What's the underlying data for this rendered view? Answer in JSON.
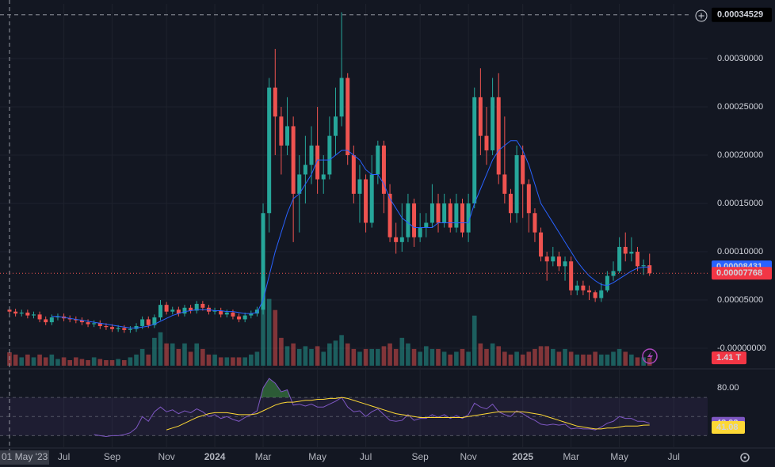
{
  "chart_data": {
    "type": "candlestick",
    "grid": true,
    "colors": {
      "up": "#26a69a",
      "down": "#ef5350"
    },
    "categories": [
      "01 May '23",
      null,
      null,
      null,
      null,
      null,
      null,
      null,
      null,
      "Jul",
      null,
      null,
      null,
      null,
      null,
      null,
      null,
      "Sep",
      null,
      null,
      null,
      null,
      null,
      null,
      null,
      null,
      "Nov",
      null,
      null,
      null,
      null,
      null,
      null,
      null,
      "2024",
      null,
      null,
      null,
      null,
      null,
      null,
      null,
      "Mar",
      null,
      null,
      null,
      null,
      null,
      null,
      null,
      null,
      "May",
      null,
      null,
      null,
      null,
      null,
      null,
      null,
      "Jul",
      null,
      null,
      null,
      null,
      null,
      null,
      null,
      null,
      "Sep",
      null,
      null,
      null,
      null,
      null,
      null,
      null,
      "Nov",
      null,
      null,
      null,
      null,
      null,
      null,
      null,
      null,
      "2025",
      null,
      null,
      null,
      null,
      null,
      null,
      null,
      "Mar",
      null,
      null,
      null,
      null,
      null,
      null,
      null,
      "May",
      null,
      null,
      null,
      null,
      null,
      null,
      null,
      null,
      "Jul"
    ],
    "ohlc": [
      [
        4e-05,
        4.3e-05,
        3.5e-05,
        3.8e-05
      ],
      [
        3.8e-05,
        4.1e-05,
        3.3e-05,
        3.6e-05
      ],
      [
        3.6e-05,
        4e-05,
        3.3e-05,
        3.7e-05
      ],
      [
        3.7e-05,
        4e-05,
        3.1e-05,
        3.4e-05
      ],
      [
        3.4e-05,
        3.8e-05,
        3.1e-05,
        3.5e-05
      ],
      [
        3.5e-05,
        3.8e-05,
        2.7e-05,
        3e-05
      ],
      [
        3e-05,
        3.3e-05,
        2.4e-05,
        2.7e-05
      ],
      [
        2.7e-05,
        3.5e-05,
        2.4e-05,
        3.2e-05
      ],
      [
        3.2e-05,
        3.6e-05,
        2.9e-05,
        3.3e-05
      ],
      [
        3.3e-05,
        3.6e-05,
        2.8e-05,
        3.1e-05
      ],
      [
        3.1e-05,
        3.4e-05,
        2.7e-05,
        3e-05
      ],
      [
        3e-05,
        3.3e-05,
        2.6e-05,
        2.9e-05
      ],
      [
        2.9e-05,
        3.2e-05,
        2.4e-05,
        2.7e-05
      ],
      [
        2.7e-05,
        3e-05,
        2.2e-05,
        2.5e-05
      ],
      [
        2.5e-05,
        2.9e-05,
        2.2e-05,
        2.6e-05
      ],
      [
        2.6e-05,
        2.9e-05,
        2e-05,
        2.3e-05
      ],
      [
        2.3e-05,
        2.6e-05,
        1.9e-05,
        2.2e-05
      ],
      [
        2.2e-05,
        2.5e-05,
        1.7e-05,
        2e-05
      ],
      [
        2e-05,
        2.4e-05,
        1.7e-05,
        2.1e-05
      ],
      [
        2.1e-05,
        2.4e-05,
        1.6e-05,
        1.9e-05
      ],
      [
        1.9e-05,
        2.3e-05,
        1.6e-05,
        2e-05
      ],
      [
        2e-05,
        2.6e-05,
        1.7e-05,
        2.3e-05
      ],
      [
        2.3e-05,
        3.3e-05,
        2e-05,
        3e-05
      ],
      [
        3e-05,
        3.3e-05,
        2.1e-05,
        2.4e-05
      ],
      [
        2.4e-05,
        3.5e-05,
        2.1e-05,
        3.2e-05
      ],
      [
        3.2e-05,
        5e-05,
        2.9e-05,
        4.5e-05
      ],
      [
        4.5e-05,
        4.8e-05,
        3.5e-05,
        3.8e-05
      ],
      [
        3.8e-05,
        4.3e-05,
        3.5e-05,
        4e-05
      ],
      [
        4e-05,
        4.3e-05,
        3.3e-05,
        3.6e-05
      ],
      [
        3.6e-05,
        4.5e-05,
        3.3e-05,
        4.2e-05
      ],
      [
        4.2e-05,
        4.5e-05,
        3.6e-05,
        3.9e-05
      ],
      [
        3.9e-05,
        4.9e-05,
        3.6e-05,
        4.6e-05
      ],
      [
        4.6e-05,
        4.9e-05,
        3.9e-05,
        4.2e-05
      ],
      [
        4.2e-05,
        4.5e-05,
        3.5e-05,
        3.8e-05
      ],
      [
        3.8e-05,
        4.2e-05,
        3.5e-05,
        3.9e-05
      ],
      [
        3.9e-05,
        4.2e-05,
        3.2e-05,
        3.5e-05
      ],
      [
        3.5e-05,
        4e-05,
        3.2e-05,
        3.7e-05
      ],
      [
        3.7e-05,
        4e-05,
        3e-05,
        3.3e-05
      ],
      [
        3.3e-05,
        3.6e-05,
        2.7e-05,
        3e-05
      ],
      [
        3e-05,
        3.7e-05,
        2.7e-05,
        3.4e-05
      ],
      [
        3.4e-05,
        3.9e-05,
        3.1e-05,
        3.6e-05
      ],
      [
        3.6e-05,
        4.3e-05,
        3.3e-05,
        4e-05
      ],
      [
        4e-05,
        0.00015,
        3.5e-05,
        0.00014
      ],
      [
        0.00014,
        0.00028,
        0.00012,
        0.00027
      ],
      [
        0.00027,
        0.00031,
        0.0002,
        0.00024
      ],
      [
        0.00024,
        0.00025,
        0.00018,
        0.00021
      ],
      [
        0.00021,
        0.00026,
        0.0002,
        0.00023
      ],
      [
        0.00023,
        0.00024,
        0.00011,
        0.00016
      ],
      [
        0.00016,
        0.0002,
        0.00012,
        0.00018
      ],
      [
        0.00018,
        0.00022,
        0.00015,
        0.00019
      ],
      [
        0.00019,
        0.00023,
        0.00017,
        0.00021
      ],
      [
        0.00021,
        0.00025,
        0.00016,
        0.000175
      ],
      [
        0.000175,
        0.0002,
        0.00016,
        0.00018
      ],
      [
        0.00018,
        0.00024,
        0.000175,
        0.00022
      ],
      [
        0.00022,
        0.00027,
        0.0002,
        0.00024
      ],
      [
        0.00024,
        0.000348,
        0.00023,
        0.00028
      ],
      [
        0.00028,
        0.000285,
        0.00019,
        0.0002
      ],
      [
        0.0002,
        0.00021,
        0.00015,
        0.00016
      ],
      [
        0.00016,
        0.00019,
        0.00013,
        0.000175
      ],
      [
        0.000175,
        0.00018,
        0.00012,
        0.00013
      ],
      [
        0.00013,
        0.0002,
        0.000125,
        0.00018
      ],
      [
        0.00018,
        0.000215,
        0.00017,
        0.00021
      ],
      [
        0.00021,
        0.000215,
        0.00014,
        0.00016
      ],
      [
        0.00016,
        0.00017,
        0.00011,
        0.000115
      ],
      [
        0.000115,
        0.00013,
        9.8e-05,
        0.00011
      ],
      [
        0.00011,
        0.00015,
        0.0001,
        0.000115
      ],
      [
        0.000115,
        0.00016,
        0.00011,
        0.00015
      ],
      [
        0.00015,
        0.000155,
        0.000105,
        0.000115
      ],
      [
        0.000115,
        0.00014,
        0.00011,
        0.000125
      ],
      [
        0.000125,
        0.00014,
        0.000115,
        0.00013
      ],
      [
        0.00013,
        0.00017,
        0.000125,
        0.00015
      ],
      [
        0.00015,
        0.00016,
        0.00012,
        0.00013
      ],
      [
        0.00013,
        0.00016,
        0.000125,
        0.00015
      ],
      [
        0.00015,
        0.000155,
        0.00012,
        0.000125
      ],
      [
        0.000125,
        0.00016,
        0.00012,
        0.00015
      ],
      [
        0.00015,
        0.000155,
        0.000115,
        0.00012
      ],
      [
        0.00012,
        0.00016,
        0.00011,
        0.00015
      ],
      [
        0.00015,
        0.00027,
        0.000145,
        0.00026
      ],
      [
        0.00026,
        0.00029,
        0.0002,
        0.00022
      ],
      [
        0.00022,
        0.00025,
        0.00019,
        0.000205
      ],
      [
        0.000205,
        0.00028,
        0.0002,
        0.00026
      ],
      [
        0.00026,
        0.000285,
        0.00017,
        0.00018
      ],
      [
        0.00018,
        0.00024,
        0.00015,
        0.00016
      ],
      [
        0.00016,
        0.000165,
        0.00013,
        0.00014
      ],
      [
        0.00014,
        0.00021,
        0.00013,
        0.0002
      ],
      [
        0.0002,
        0.00021,
        0.000135,
        0.00017
      ],
      [
        0.00017,
        0.000175,
        0.00012,
        0.00014
      ],
      [
        0.00014,
        0.000145,
        0.00011,
        0.00012
      ],
      [
        0.00012,
        0.000125,
        9e-05,
        9.5e-05
      ],
      [
        9.5e-05,
        0.0001,
        7e-05,
        9e-05
      ],
      [
        9e-05,
        0.000105,
        8.5e-05,
        9.5e-05
      ],
      [
        9.5e-05,
        0.0001,
        8e-05,
        8.5e-05
      ],
      [
        8.5e-05,
        9.5e-05,
        7e-05,
        9e-05
      ],
      [
        9e-05,
        9.5e-05,
        5.5e-05,
        6e-05
      ],
      [
        6e-05,
        7e-05,
        5.5e-05,
        6.5e-05
      ],
      [
        6.5e-05,
        7e-05,
        5.5e-05,
        6e-05
      ],
      [
        6e-05,
        6.5e-05,
        5e-05,
        5.8e-05
      ],
      [
        5.8e-05,
        6e-05,
        4.8e-05,
        5.2e-05
      ],
      [
        5.2e-05,
        6.8e-05,
        4.8e-05,
        6e-05
      ],
      [
        6e-05,
        8e-05,
        5.8e-05,
        7.5e-05
      ],
      [
        7.5e-05,
        9e-05,
        7e-05,
        8e-05
      ],
      [
        8e-05,
        0.000115,
        7.8e-05,
        0.000105
      ],
      [
        0.000105,
        0.00012,
        9e-05,
        9.8e-05
      ],
      [
        9.8e-05,
        0.000115,
        9e-05,
        0.0001
      ],
      [
        0.0001,
        0.000105,
        8e-05,
        8.5e-05
      ],
      [
        8.5e-05,
        9.2e-05,
        7.6e-05,
        8.6e-05
      ],
      [
        8.6e-05,
        9.8e-05,
        7.5e-05,
        7.768e-05
      ],
      null,
      null,
      null,
      null
    ],
    "ma": {
      "color": "#2962ff",
      "values": [
        null,
        null,
        null,
        null,
        null,
        null,
        null,
        3.3e-05,
        3.3e-05,
        3.2e-05,
        3.1e-05,
        3e-05,
        2.9e-05,
        2.8e-05,
        2.7e-05,
        2.6e-05,
        2.5e-05,
        2.4e-05,
        2.3e-05,
        2.2e-05,
        2.1e-05,
        2.1e-05,
        2.2e-05,
        2.3e-05,
        2.5e-05,
        2.8e-05,
        3.1e-05,
        3.4e-05,
        3.6e-05,
        3.8e-05,
        3.9e-05,
        4e-05,
        4e-05,
        4e-05,
        3.9e-05,
        3.9e-05,
        3.8e-05,
        3.8e-05,
        3.7e-05,
        3.6e-05,
        3.6e-05,
        3.7e-05,
        5e-05,
        7.5e-05,
        0.0001,
        0.00012,
        0.00014,
        0.000155,
        0.00016,
        0.00017,
        0.00018,
        0.000195,
        0.000195,
        0.000195,
        0.0002,
        0.000205,
        0.000205,
        0.0002,
        0.000195,
        0.000185,
        0.00018,
        0.00018,
        0.00017,
        0.000155,
        0.000145,
        0.000135,
        0.00013,
        0.000125,
        0.000125,
        0.000125,
        0.000125,
        0.00013,
        0.00013,
        0.00013,
        0.00013,
        0.00013,
        0.00013,
        0.00015,
        0.000165,
        0.00018,
        0.000195,
        0.000205,
        0.00021,
        0.000215,
        0.000215,
        0.000205,
        0.00019,
        0.00017,
        0.00015,
        0.00014,
        0.00013,
        0.00012,
        0.00011,
        0.0001,
        9e-05,
        8.2e-05,
        7.5e-05,
        7e-05,
        6.6e-05,
        6.5e-05,
        6.8e-05,
        7.2e-05,
        7.6e-05,
        8e-05,
        8.3e-05,
        8.4e-05,
        8.431e-05,
        null,
        null,
        null,
        null
      ]
    },
    "volume": {
      "ylim": [
        0,
        65
      ],
      "last_label": "1.41 T",
      "values": [
        2.4,
        2,
        1.5,
        2,
        1.5,
        2,
        1.5,
        2,
        1.2,
        1.5,
        1,
        1.5,
        1.2,
        1,
        1.5,
        1.2,
        1,
        1,
        1.2,
        1,
        1.5,
        2,
        3,
        2,
        5,
        6,
        4,
        4,
        3,
        4,
        2.5,
        4,
        3,
        2,
        2,
        1.5,
        1.5,
        1.5,
        1.5,
        1.5,
        2,
        2.5,
        16,
        12,
        10,
        5,
        3.5,
        4,
        3,
        3.5,
        3,
        3.5,
        2.5,
        4,
        4.5,
        5.5,
        4,
        3,
        2.5,
        3,
        3,
        3,
        3.5,
        4,
        3,
        5,
        4,
        3,
        2.5,
        3.5,
        3,
        3,
        2.5,
        2,
        2.5,
        3,
        2.5,
        9,
        4,
        3,
        4,
        3.5,
        2.5,
        2,
        2.5,
        2,
        2.5,
        3,
        3.5,
        3.5,
        3,
        2.5,
        3,
        2.5,
        2,
        2,
        2,
        2.5,
        2,
        2,
        2.5,
        3,
        2.5,
        2,
        1.5,
        1.5,
        1.41,
        null,
        null,
        null,
        null
      ]
    },
    "ylim": [
      -1.8e-05,
      0.0003566
    ],
    "yticks": [
      {
        "value": 0,
        "label": "-0.00000000"
      },
      {
        "value": 5e-05,
        "label": "0.00005000"
      },
      {
        "value": 0.0001,
        "label": "0.00010000"
      },
      {
        "value": 0.00015,
        "label": "0.00015000"
      },
      {
        "value": 0.0002,
        "label": "0.00020000"
      },
      {
        "value": 0.00025,
        "label": "0.00025000"
      },
      {
        "value": 0.0003,
        "label": "0.00030000"
      }
    ],
    "crosshair": 0.00034529,
    "rsi": {
      "color": "#7e57c2",
      "ma_color": "#fdd835",
      "ylim": [
        17,
        100
      ],
      "bands": [
        70,
        50,
        30
      ],
      "yticks": [
        {
          "value": 80,
          "label": "80.00"
        }
      ],
      "values": [
        null,
        null,
        null,
        null,
        null,
        null,
        null,
        null,
        null,
        null,
        null,
        null,
        null,
        null,
        31,
        30,
        29,
        30,
        30,
        31,
        33,
        38,
        50,
        45,
        55,
        60,
        55,
        57,
        53,
        56,
        54,
        58,
        55,
        50,
        52,
        48,
        50,
        47,
        45,
        49,
        52,
        56,
        80,
        90,
        85,
        76,
        78,
        62,
        63,
        61,
        63,
        60,
        60,
        63,
        66,
        70,
        60,
        55,
        56,
        50,
        55,
        58,
        52,
        46,
        45,
        46,
        52,
        46,
        48,
        48,
        52,
        49,
        52,
        48,
        51,
        48,
        52,
        64,
        60,
        58,
        63,
        55,
        52,
        50,
        56,
        53,
        49,
        46,
        42,
        41,
        42,
        41,
        42,
        37,
        38,
        37,
        37,
        36,
        39,
        43,
        45,
        50,
        48,
        48,
        45,
        45,
        42.92,
        null,
        null,
        null,
        null
      ],
      "ma_values": [
        null,
        null,
        null,
        null,
        null,
        null,
        null,
        null,
        null,
        null,
        null,
        null,
        null,
        null,
        null,
        null,
        null,
        null,
        null,
        null,
        null,
        null,
        null,
        null,
        null,
        null,
        36,
        38,
        40,
        43,
        46,
        49,
        51,
        53,
        54,
        54,
        54,
        53,
        52,
        52,
        52,
        53,
        56,
        59,
        62,
        64,
        65,
        65,
        66,
        67,
        67,
        68,
        68,
        69,
        69,
        70,
        69,
        67,
        65,
        63,
        61,
        59,
        57,
        55,
        53,
        52,
        51,
        50,
        49,
        49,
        49,
        49,
        49,
        49,
        49,
        49,
        50,
        51,
        52,
        53,
        54,
        55,
        55,
        55,
        55,
        55,
        54,
        53,
        52,
        50,
        48,
        46,
        44,
        42,
        40,
        39,
        38,
        37,
        37,
        38,
        38,
        39,
        40,
        40,
        40,
        41,
        41.08,
        null,
        null,
        null,
        null
      ]
    }
  }
}
